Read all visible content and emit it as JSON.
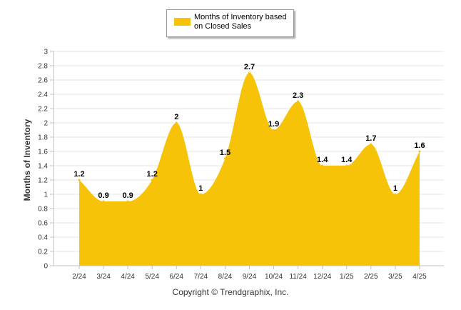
{
  "chart_data": {
    "type": "area",
    "categories": [
      "2/24",
      "3/24",
      "4/24",
      "5/24",
      "6/24",
      "7/24",
      "8/24",
      "9/24",
      "10/24",
      "11/24",
      "12/24",
      "1/25",
      "2/25",
      "3/25",
      "4/25"
    ],
    "series": [
      {
        "name": "Months of Inventory based on Closed Sales",
        "values": [
          1.2,
          0.9,
          0.9,
          1.2,
          2,
          1,
          1.5,
          2.7,
          1.9,
          2.3,
          1.4,
          1.4,
          1.7,
          1,
          1.6
        ]
      }
    ],
    "data_labels": [
      "1.2",
      "0.9",
      "0.9",
      "1.2",
      "2",
      "1",
      "1.5",
      "2.7",
      "1.9",
      "2.3",
      "1.4",
      "1.4",
      "1.7",
      "1",
      "1.6"
    ],
    "ylabel": "Months of Inventory",
    "ylim": [
      0,
      3
    ],
    "yticks": [
      "0",
      "0.2",
      "0.4",
      "0.6",
      "0.8",
      "1",
      "1.2",
      "1.4",
      "1.6",
      "1.8",
      "2",
      "2.2",
      "2.4",
      "2.6",
      "2.8",
      "3"
    ],
    "grid": true,
    "legend_position": "top-center",
    "colors": {
      "fill": "#F7C308",
      "grid": "#e6e6e6",
      "axis": "#c0c0c0"
    }
  },
  "footer": {
    "copyright": "Copyright © Trendgraphix, Inc."
  }
}
